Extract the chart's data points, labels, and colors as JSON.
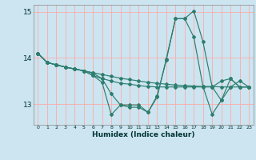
{
  "title": "",
  "xlabel": "Humidex (Indice chaleur)",
  "background_color": "#cce5f0",
  "grid_color": "#ffaaaa",
  "line_color": "#2e7d6e",
  "xlim": [
    -0.5,
    23.5
  ],
  "ylim": [
    12.55,
    15.15
  ],
  "yticks": [
    13,
    14,
    15
  ],
  "xticks": [
    0,
    1,
    2,
    3,
    4,
    5,
    6,
    7,
    8,
    9,
    10,
    11,
    12,
    13,
    14,
    15,
    16,
    17,
    18,
    19,
    20,
    21,
    22,
    23
  ],
  "series": [
    [
      14.1,
      13.9,
      13.85,
      13.8,
      13.76,
      13.72,
      13.68,
      13.64,
      13.6,
      13.56,
      13.53,
      13.5,
      13.47,
      13.45,
      13.43,
      13.41,
      13.4,
      13.39,
      13.38,
      13.38,
      13.37,
      13.37,
      13.37,
      13.37
    ],
    [
      14.1,
      13.9,
      13.85,
      13.8,
      13.76,
      13.72,
      13.67,
      13.55,
      13.22,
      12.98,
      12.93,
      12.93,
      12.82,
      13.18,
      13.95,
      14.85,
      14.85,
      15.02,
      14.35,
      13.37,
      13.5,
      13.55,
      13.37,
      13.37
    ],
    [
      14.1,
      13.9,
      13.85,
      13.8,
      13.76,
      13.72,
      13.62,
      13.47,
      12.77,
      12.98,
      12.98,
      12.98,
      12.82,
      13.15,
      13.98,
      14.85,
      14.85,
      14.45,
      13.38,
      12.78,
      13.08,
      13.55,
      13.37,
      13.37
    ],
    [
      14.1,
      13.9,
      13.85,
      13.8,
      13.76,
      13.72,
      13.62,
      13.55,
      13.5,
      13.45,
      13.43,
      13.4,
      13.38,
      13.37,
      13.37,
      13.37,
      13.37,
      13.37,
      13.37,
      13.37,
      13.08,
      13.37,
      13.5,
      13.37
    ]
  ]
}
